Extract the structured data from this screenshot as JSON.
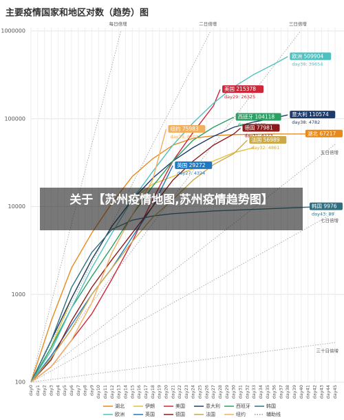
{
  "chart_data": {
    "type": "line",
    "title": "主要疫情国家和地区对数（趋势）图",
    "log_y": true,
    "grid": true,
    "ylim": [
      100,
      1000000
    ],
    "yticks": [
      100,
      1000,
      10000,
      100000,
      1000000
    ],
    "xlim": [
      0,
      45
    ],
    "xticks": [
      {
        "value": 0,
        "label": "day0"
      },
      {
        "value": 1,
        "label": "day1"
      },
      {
        "value": 2,
        "label": "day2"
      },
      {
        "value": 3,
        "label": "day3"
      },
      {
        "value": 4,
        "label": "day4"
      },
      {
        "value": 5,
        "label": "day5"
      },
      {
        "value": 6,
        "label": "day6"
      },
      {
        "value": 7,
        "label": "day7"
      },
      {
        "value": 8,
        "label": "day8"
      },
      {
        "value": 9,
        "label": "day9"
      },
      {
        "value": 10,
        "label": "day10"
      },
      {
        "value": 11,
        "label": "day11"
      },
      {
        "value": 12,
        "label": "day12"
      },
      {
        "value": 13,
        "label": "day13"
      },
      {
        "value": 14,
        "label": "day14"
      },
      {
        "value": 15,
        "label": "day15"
      },
      {
        "value": 16,
        "label": "day16"
      },
      {
        "value": 17,
        "label": "day17"
      },
      {
        "value": 18,
        "label": "day18"
      },
      {
        "value": 19,
        "label": "day19"
      },
      {
        "value": 20,
        "label": "day20"
      },
      {
        "value": 21,
        "label": "day21"
      },
      {
        "value": 22,
        "label": "day22"
      },
      {
        "value": 23,
        "label": "day23"
      },
      {
        "value": 24,
        "label": "day24"
      },
      {
        "value": 25,
        "label": "day25"
      },
      {
        "value": 26,
        "label": "day26"
      },
      {
        "value": 27,
        "label": "day27"
      },
      {
        "value": 28,
        "label": "day28"
      },
      {
        "value": 29,
        "label": "day29"
      },
      {
        "value": 30,
        "label": "day30"
      },
      {
        "value": 31,
        "label": "day31"
      },
      {
        "value": 32,
        "label": "day32"
      },
      {
        "value": 33,
        "label": "day33"
      },
      {
        "value": 34,
        "label": "day34"
      },
      {
        "value": 35,
        "label": "day35"
      },
      {
        "value": 36,
        "label": "day36"
      },
      {
        "value": 37,
        "label": "day37"
      },
      {
        "value": 38,
        "label": "day38"
      },
      {
        "value": 39,
        "label": "day39"
      },
      {
        "value": 40,
        "label": "day40"
      },
      {
        "value": 41,
        "label": "day41"
      },
      {
        "value": 42,
        "label": "day42"
      },
      {
        "value": 43,
        "label": "day43"
      },
      {
        "value": 44,
        "label": "day44"
      },
      {
        "value": 45,
        "label": "day45"
      }
    ],
    "series": [
      {
        "name": "湖北",
        "color": "#e8891c",
        "x": [
          0,
          3,
          6,
          9,
          12,
          15,
          18,
          21,
          24,
          27,
          30,
          36,
          45
        ],
        "values": [
          100,
          500,
          2000,
          5000,
          11000,
          22000,
          35000,
          50000,
          60000,
          64000,
          66000,
          67000,
          67217
        ],
        "end_label": "湖北 67217"
      },
      {
        "name": "伊朗",
        "color": "#e3c13b",
        "x": [
          0,
          3,
          6,
          9,
          12,
          15,
          18,
          21,
          24,
          27,
          30,
          33
        ],
        "values": [
          100,
          250,
          900,
          2500,
          6000,
          12000,
          18000,
          22000,
          27000,
          33000,
          41000,
          47000
        ]
      },
      {
        "name": "美国",
        "color": "#d0263a",
        "x": [
          0,
          3,
          6,
          9,
          12,
          15,
          18,
          21,
          24,
          27,
          28
        ],
        "values": [
          100,
          150,
          300,
          600,
          1500,
          4000,
          12000,
          33000,
          70000,
          140000,
          215378
        ],
        "end_label": "美国 215378",
        "end_note": "day29: 26325"
      },
      {
        "name": "意大利",
        "color": "#1d3b6b",
        "x": [
          0,
          3,
          6,
          9,
          12,
          15,
          18,
          21,
          24,
          27,
          30,
          33,
          36,
          38
        ],
        "values": [
          100,
          300,
          900,
          2500,
          6000,
          12000,
          21000,
          33000,
          47000,
          63000,
          80000,
          92000,
          102000,
          110574
        ],
        "end_label": "意大利 110574",
        "end_note": "day38: 4782"
      },
      {
        "name": "西班牙",
        "color": "#2aa063",
        "x": [
          0,
          3,
          6,
          9,
          12,
          15,
          18,
          21,
          24,
          27,
          30
        ],
        "values": [
          100,
          250,
          700,
          1600,
          3500,
          8000,
          17000,
          33000,
          57000,
          80000,
          104118
        ],
        "end_label": "西班牙 104118",
        "end_note": "day30: 8195"
      },
      {
        "name": "韩国",
        "color": "#2f6f80",
        "x": [
          0,
          3,
          6,
          9,
          12,
          15,
          18,
          21,
          27,
          33,
          39,
          43
        ],
        "values": [
          100,
          300,
          1200,
          3000,
          5500,
          7000,
          7800,
          8300,
          8900,
          9300,
          9700,
          9976
        ],
        "end_label": "韩国 9976",
        "end_note": "day43: 89"
      },
      {
        "name": "欧洲",
        "color": "#4fc0c0",
        "x": [
          0,
          3,
          6,
          9,
          12,
          15,
          18,
          21,
          24,
          27,
          30,
          33,
          36,
          38
        ],
        "values": [
          100,
          230,
          700,
          2000,
          5000,
          12000,
          25000,
          50000,
          90000,
          150000,
          230000,
          320000,
          420000,
          509904
        ],
        "end_label": "欧洲 509904",
        "end_note": "day38: 39654"
      },
      {
        "name": "英国",
        "color": "#1f78c0",
        "x": [
          0,
          3,
          6,
          9,
          12,
          15,
          18,
          21
        ],
        "values": [
          100,
          200,
          450,
          1000,
          2000,
          4500,
          10000,
          29272
        ],
        "end_label": "英国 29272",
        "end_note": "day27: 4324"
      },
      {
        "name": "德国",
        "color": "#8b1a1a",
        "x": [
          0,
          3,
          6,
          9,
          12,
          15,
          18,
          21,
          24,
          27,
          30,
          31
        ],
        "values": [
          100,
          180,
          500,
          1200,
          2500,
          5000,
          10000,
          20000,
          33000,
          50000,
          67000,
          77981
        ],
        "end_label": "德国 77981",
        "end_note": "day31: 6173"
      },
      {
        "name": "法国",
        "color": "#c9a94a",
        "x": [
          0,
          3,
          6,
          9,
          12,
          15,
          18,
          21,
          24,
          27,
          30,
          32
        ],
        "values": [
          100,
          190,
          400,
          1000,
          2000,
          4000,
          7500,
          12000,
          20000,
          30000,
          40000,
          56989
        ],
        "end_label": "法国 56989",
        "end_note": "day32: 4861"
      },
      {
        "name": "纽约",
        "color": "#f0b060",
        "x": [
          0,
          3,
          6,
          9,
          12,
          15,
          18,
          20
        ],
        "values": [
          100,
          150,
          300,
          800,
          3000,
          8000,
          20000,
          75983
        ],
        "end_label": "纽约 75983",
        "end_note": "day23: 8703"
      }
    ],
    "guide_legend": "辅助线",
    "guides": [
      {
        "name": "每日倍增",
        "x": [
          0,
          13.3
        ],
        "values": [
          100,
          1000000
        ]
      },
      {
        "name": "二日倍增",
        "x": [
          0,
          26.6
        ],
        "values": [
          100,
          1000000
        ]
      },
      {
        "name": "三日倍增",
        "x": [
          0,
          39.9
        ],
        "values": [
          100,
          1000000
        ]
      },
      {
        "name": "五日倍增",
        "x": [
          0,
          45
        ],
        "values": [
          100,
          51200
        ]
      },
      {
        "name": "七日倍增",
        "x": [
          0,
          45
        ],
        "values": [
          100,
          8600
        ]
      },
      {
        "name": "三十日倍增",
        "x": [
          0,
          45
        ],
        "values": [
          100,
          283
        ]
      }
    ]
  },
  "overlay_text": "关于【苏州疫情地图,苏州疫情趋势图】"
}
